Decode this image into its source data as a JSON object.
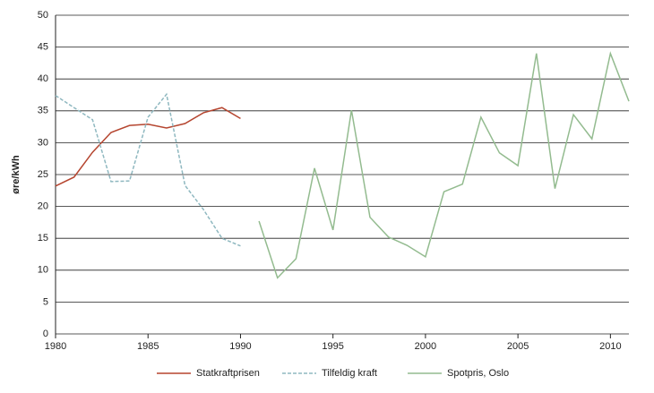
{
  "chart_data": {
    "type": "line",
    "y_label": "øre/kWh",
    "x": [
      1980,
      1981,
      1982,
      1983,
      1984,
      1985,
      1986,
      1987,
      1988,
      1989,
      1990,
      1991,
      1992,
      1993,
      1994,
      1995,
      1996,
      1997,
      1998,
      1999,
      2000,
      2001,
      2002,
      2003,
      2004,
      2005,
      2006,
      2007,
      2008,
      2009,
      2010,
      2011
    ],
    "series": [
      {
        "name": "Statkraftprisen",
        "color": "#b5452f",
        "line_style": "solid",
        "values": [
          23.2,
          24.6,
          28.5,
          31.6,
          32.7,
          32.9,
          32.3,
          33.0,
          34.7,
          35.5,
          33.8,
          null,
          null,
          null,
          null,
          null,
          null,
          null,
          null,
          null,
          null,
          null,
          null,
          null,
          null,
          null,
          null,
          null,
          null,
          null,
          null,
          null
        ]
      },
      {
        "name": "Tilfeldig kraft",
        "color": "#8fb8c0",
        "line_style": "dashed",
        "values": [
          37.4,
          35.5,
          33.6,
          23.9,
          24.0,
          34.0,
          37.6,
          23.3,
          19.5,
          15.0,
          13.8,
          null,
          null,
          null,
          null,
          null,
          null,
          null,
          null,
          null,
          null,
          null,
          null,
          null,
          null,
          null,
          null,
          null,
          null,
          null,
          null,
          null
        ]
      },
      {
        "name": "Spotpris, Oslo",
        "color": "#93bb8f",
        "line_style": "solid",
        "values": [
          null,
          null,
          null,
          null,
          null,
          null,
          null,
          null,
          null,
          null,
          null,
          17.7,
          8.8,
          11.8,
          26.0,
          16.3,
          35.1,
          18.3,
          15.2,
          13.9,
          12.1,
          22.3,
          23.5,
          34.0,
          28.4,
          26.4,
          44.0,
          22.8,
          34.4,
          30.6,
          44.0,
          36.5
        ]
      }
    ],
    "xlim": [
      1980,
      2011
    ],
    "xticks": [
      1980,
      1985,
      1990,
      1995,
      2000,
      2005,
      2010
    ],
    "ylim": [
      0,
      50
    ],
    "yticks": [
      0,
      5,
      10,
      15,
      20,
      25,
      30,
      35,
      40,
      45,
      50
    ],
    "grid": true,
    "legend": "bottom"
  }
}
